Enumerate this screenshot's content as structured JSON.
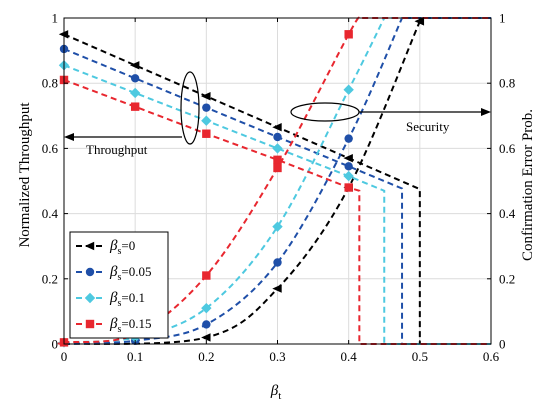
{
  "chart_data": {
    "type": "line",
    "xlabel_main": "β",
    "xlabel_sub": "t",
    "ylabel_left": "Normalized Throughput",
    "ylabel_right": "Confirmation Error Prob.",
    "xlim": [
      0,
      0.6
    ],
    "ylim_left": [
      0,
      1
    ],
    "ylim_right": [
      0,
      1
    ],
    "x_ticks": [
      "0",
      "0.1",
      "0.2",
      "0.3",
      "0.4",
      "0.5",
      "0.6"
    ],
    "y_ticks_left": [
      "0",
      "0.2",
      "0.4",
      "0.6",
      "0.8",
      "1"
    ],
    "y_ticks_right": [
      "0",
      "0.2",
      "0.4",
      "0.6",
      "0.8",
      "1"
    ],
    "grid": true,
    "legend_position": "bottom-left",
    "series": [
      {
        "label_main": "β",
        "label_sub": "s",
        "label_val": "=0",
        "color": "#000000",
        "marker": "triangle-left",
        "throughput": {
          "x": [
            0,
            0.1,
            0.2,
            0.3,
            0.4,
            0.5
          ],
          "y": [
            0.95,
            0.855,
            0.76,
            0.665,
            0.57,
            0.475
          ],
          "drop_x": 0.5
        },
        "error": {
          "x": [
            0.2,
            0.3,
            0.4,
            0.5
          ],
          "y": [
            0.02,
            0.17,
            0.48,
            0.99
          ],
          "rise_x": 0.5
        }
      },
      {
        "label_main": "β",
        "label_sub": "s",
        "label_val": "=0.05",
        "color": "#1f4fa8",
        "marker": "circle",
        "throughput": {
          "x": [
            0,
            0.1,
            0.2,
            0.3,
            0.4,
            0.475
          ],
          "y": [
            0.905,
            0.815,
            0.725,
            0.635,
            0.545,
            0.477
          ],
          "drop_x": 0.475
        },
        "error": {
          "x": [
            0.1,
            0.2,
            0.3,
            0.4,
            0.475
          ],
          "y": [
            0.01,
            0.06,
            0.25,
            0.63,
            1.0
          ],
          "rise_x": 0.475
        }
      },
      {
        "label_main": "β",
        "label_sub": "s",
        "label_val": "=0.1",
        "color": "#4ec9e0",
        "marker": "diamond",
        "throughput": {
          "x": [
            0,
            0.1,
            0.2,
            0.3,
            0.4,
            0.45
          ],
          "y": [
            0.855,
            0.77,
            0.685,
            0.6,
            0.515,
            0.47
          ],
          "drop_x": 0.45
        },
        "error": {
          "x": [
            0,
            0.1,
            0.2,
            0.3,
            0.4,
            0.45
          ],
          "y": [
            0.005,
            0.02,
            0.11,
            0.36,
            0.78,
            1.0
          ],
          "rise_x": 0.45
        }
      },
      {
        "label_main": "β",
        "label_sub": "s",
        "label_val": "=0.15",
        "color": "#e8272f",
        "marker": "square",
        "throughput": {
          "x": [
            0,
            0.1,
            0.2,
            0.3,
            0.4,
            0.415
          ],
          "y": [
            0.81,
            0.728,
            0.645,
            0.565,
            0.48,
            0.47
          ],
          "drop_x": 0.415
        },
        "error": {
          "x": [
            0,
            0.1,
            0.2,
            0.3,
            0.4,
            0.415
          ],
          "y": [
            0.005,
            0.03,
            0.21,
            0.54,
            0.95,
            1.0
          ],
          "rise_x": 0.415
        }
      }
    ],
    "annotations": [
      {
        "text": "Throughput",
        "arrow": "left"
      },
      {
        "text": "Security",
        "arrow": "right"
      }
    ]
  }
}
